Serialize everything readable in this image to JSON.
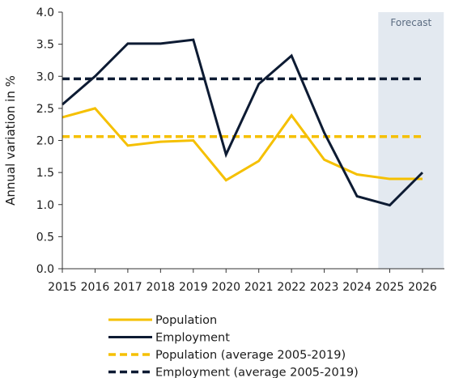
{
  "chart_data": {
    "type": "line",
    "title": "",
    "xlabel": "",
    "ylabel": "Annual variation in %",
    "x": [
      2015,
      2016,
      2017,
      2018,
      2019,
      2020,
      2021,
      2022,
      2023,
      2024,
      2025,
      2026
    ],
    "x_tick_labels": [
      "2015",
      "2016",
      "2017",
      "2018",
      "2019",
      "2020",
      "2021",
      "2022",
      "2023",
      "2024",
      "2025",
      "2026"
    ],
    "ylim": [
      0,
      4
    ],
    "y_ticks": [
      0,
      0.5,
      1,
      1.5,
      2,
      2.5,
      3,
      3.5,
      4
    ],
    "y_tick_labels": [
      "0.0",
      "0.5",
      "1.0",
      "1.5",
      "2.0",
      "2.5",
      "3.0",
      "3.5",
      "4.0"
    ],
    "grid": false,
    "legend_position": "bottom",
    "forecast": {
      "label": "Forecast",
      "x_start": 2024.65,
      "x_end": 2026.65,
      "color": "#e3e9f0"
    },
    "series": [
      {
        "name": "Population",
        "style": "solid",
        "color": "#f5c000",
        "values": [
          2.36,
          2.5,
          1.92,
          1.98,
          2.0,
          1.38,
          1.68,
          2.39,
          1.7,
          1.47,
          1.4,
          1.4
        ]
      },
      {
        "name": "Employment",
        "style": "solid",
        "color": "#0d1b33",
        "values": [
          2.56,
          3.0,
          3.51,
          3.51,
          3.57,
          1.78,
          2.88,
          3.32,
          2.12,
          1.13,
          0.99,
          1.5
        ]
      },
      {
        "name": "Population (average 2005-2019)",
        "style": "dashed",
        "color": "#f5c000",
        "values": [
          2.06,
          2.06,
          2.06,
          2.06,
          2.06,
          2.06,
          2.06,
          2.06,
          2.06,
          2.06,
          2.06,
          2.06
        ]
      },
      {
        "name": "Employment (average 2005-2019)",
        "style": "dashed",
        "color": "#0d1b33",
        "values": [
          2.96,
          2.96,
          2.96,
          2.96,
          2.96,
          2.96,
          2.96,
          2.96,
          2.96,
          2.96,
          2.96,
          2.96
        ]
      }
    ]
  }
}
